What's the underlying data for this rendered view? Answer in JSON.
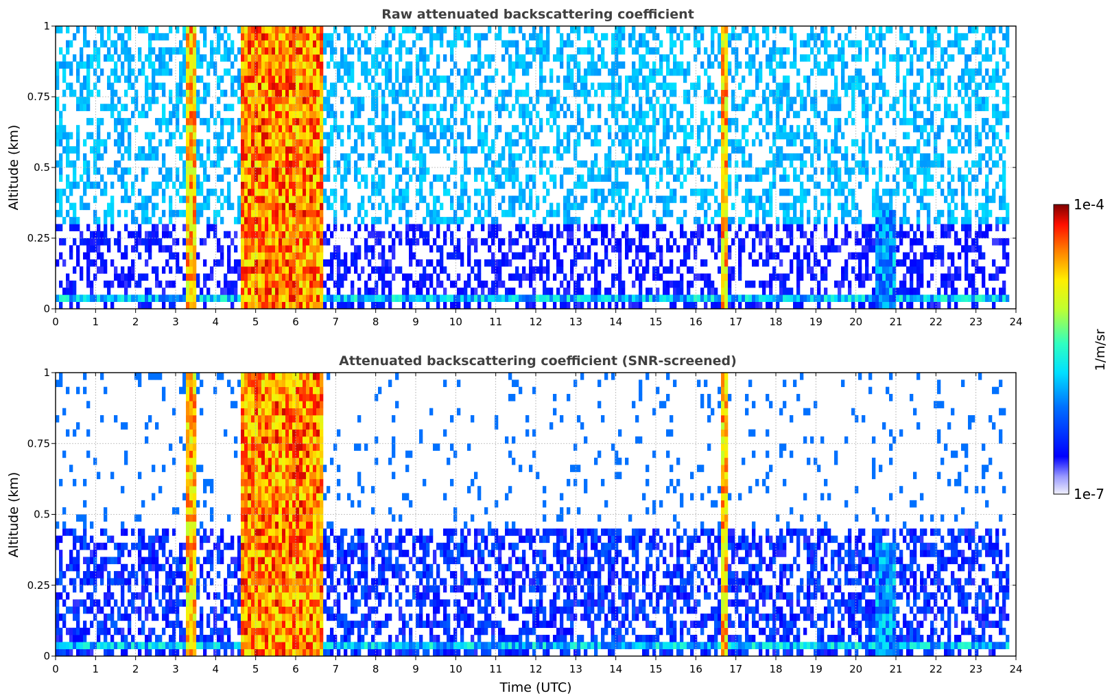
{
  "chart_data": [
    {
      "type": "heatmap",
      "title": "Raw attenuated backscattering coefficient",
      "xlabel": "",
      "ylabel": "Altitude (km)",
      "xlim": [
        0,
        24
      ],
      "ylim": [
        0,
        1
      ],
      "x_ticks": [
        "0",
        "1",
        "2",
        "3",
        "4",
        "5",
        "6",
        "7",
        "8",
        "9",
        "10",
        "11",
        "12",
        "13",
        "14",
        "15",
        "16",
        "17",
        "18",
        "19",
        "20",
        "21",
        "22",
        "23",
        "24"
      ],
      "y_ticks": [
        "0",
        "0.25",
        "0.5",
        "0.75",
        "1"
      ],
      "grid": true,
      "features": [
        {
          "name": "near-surface layer",
          "x": [
            0,
            23.8
          ],
          "y": [
            0.02,
            0.06
          ],
          "value": 1.5e-06
        },
        {
          "name": "precipitation band",
          "x": [
            3.3,
            3.5
          ],
          "y": [
            0,
            1
          ],
          "value": 2e-05
        },
        {
          "name": "precipitation band",
          "x": [
            4.6,
            6.7
          ],
          "y": [
            0,
            1
          ],
          "value": 3e-05
        },
        {
          "name": "precipitation band",
          "x": [
            16.6,
            16.8
          ],
          "y": [
            0,
            1
          ],
          "value": 2e-05
        },
        {
          "name": "enhanced backscatter",
          "x": [
            20.5,
            21.0
          ],
          "y": [
            0,
            0.35
          ],
          "value": 1e-06
        }
      ]
    },
    {
      "type": "heatmap",
      "title": "Attenuated backscattering coefficient (SNR-screened)",
      "xlabel": "Time (UTC)",
      "ylabel": "Altitude (km)",
      "xlim": [
        0,
        24
      ],
      "ylim": [
        0,
        1
      ],
      "x_ticks": [
        "0",
        "1",
        "2",
        "3",
        "4",
        "5",
        "6",
        "7",
        "8",
        "9",
        "10",
        "11",
        "12",
        "13",
        "14",
        "15",
        "16",
        "17",
        "18",
        "19",
        "20",
        "21",
        "22",
        "23",
        "24"
      ],
      "y_ticks": [
        "0",
        "0.25",
        "0.5",
        "0.75",
        "1"
      ],
      "grid": true,
      "features": [
        {
          "name": "near-surface layer",
          "x": [
            0,
            23.8
          ],
          "y": [
            0.02,
            0.06
          ],
          "value": 1.5e-06
        },
        {
          "name": "precipitation band",
          "x": [
            3.3,
            3.5
          ],
          "y": [
            0,
            1
          ],
          "value": 2e-05
        },
        {
          "name": "precipitation band",
          "x": [
            4.6,
            6.7
          ],
          "y": [
            0,
            1
          ],
          "value": 3e-05
        },
        {
          "name": "precipitation band",
          "x": [
            16.6,
            16.8
          ],
          "y": [
            0,
            1
          ],
          "value": 2e-05
        },
        {
          "name": "enhanced backscatter",
          "x": [
            20.5,
            21.0
          ],
          "y": [
            0,
            0.4
          ],
          "value": 1e-06
        }
      ]
    }
  ],
  "colorbar": {
    "label": "1/m/sr",
    "min_label": "1e-7",
    "max_label": "1e-4",
    "scale": "log",
    "colormap": "jet"
  }
}
